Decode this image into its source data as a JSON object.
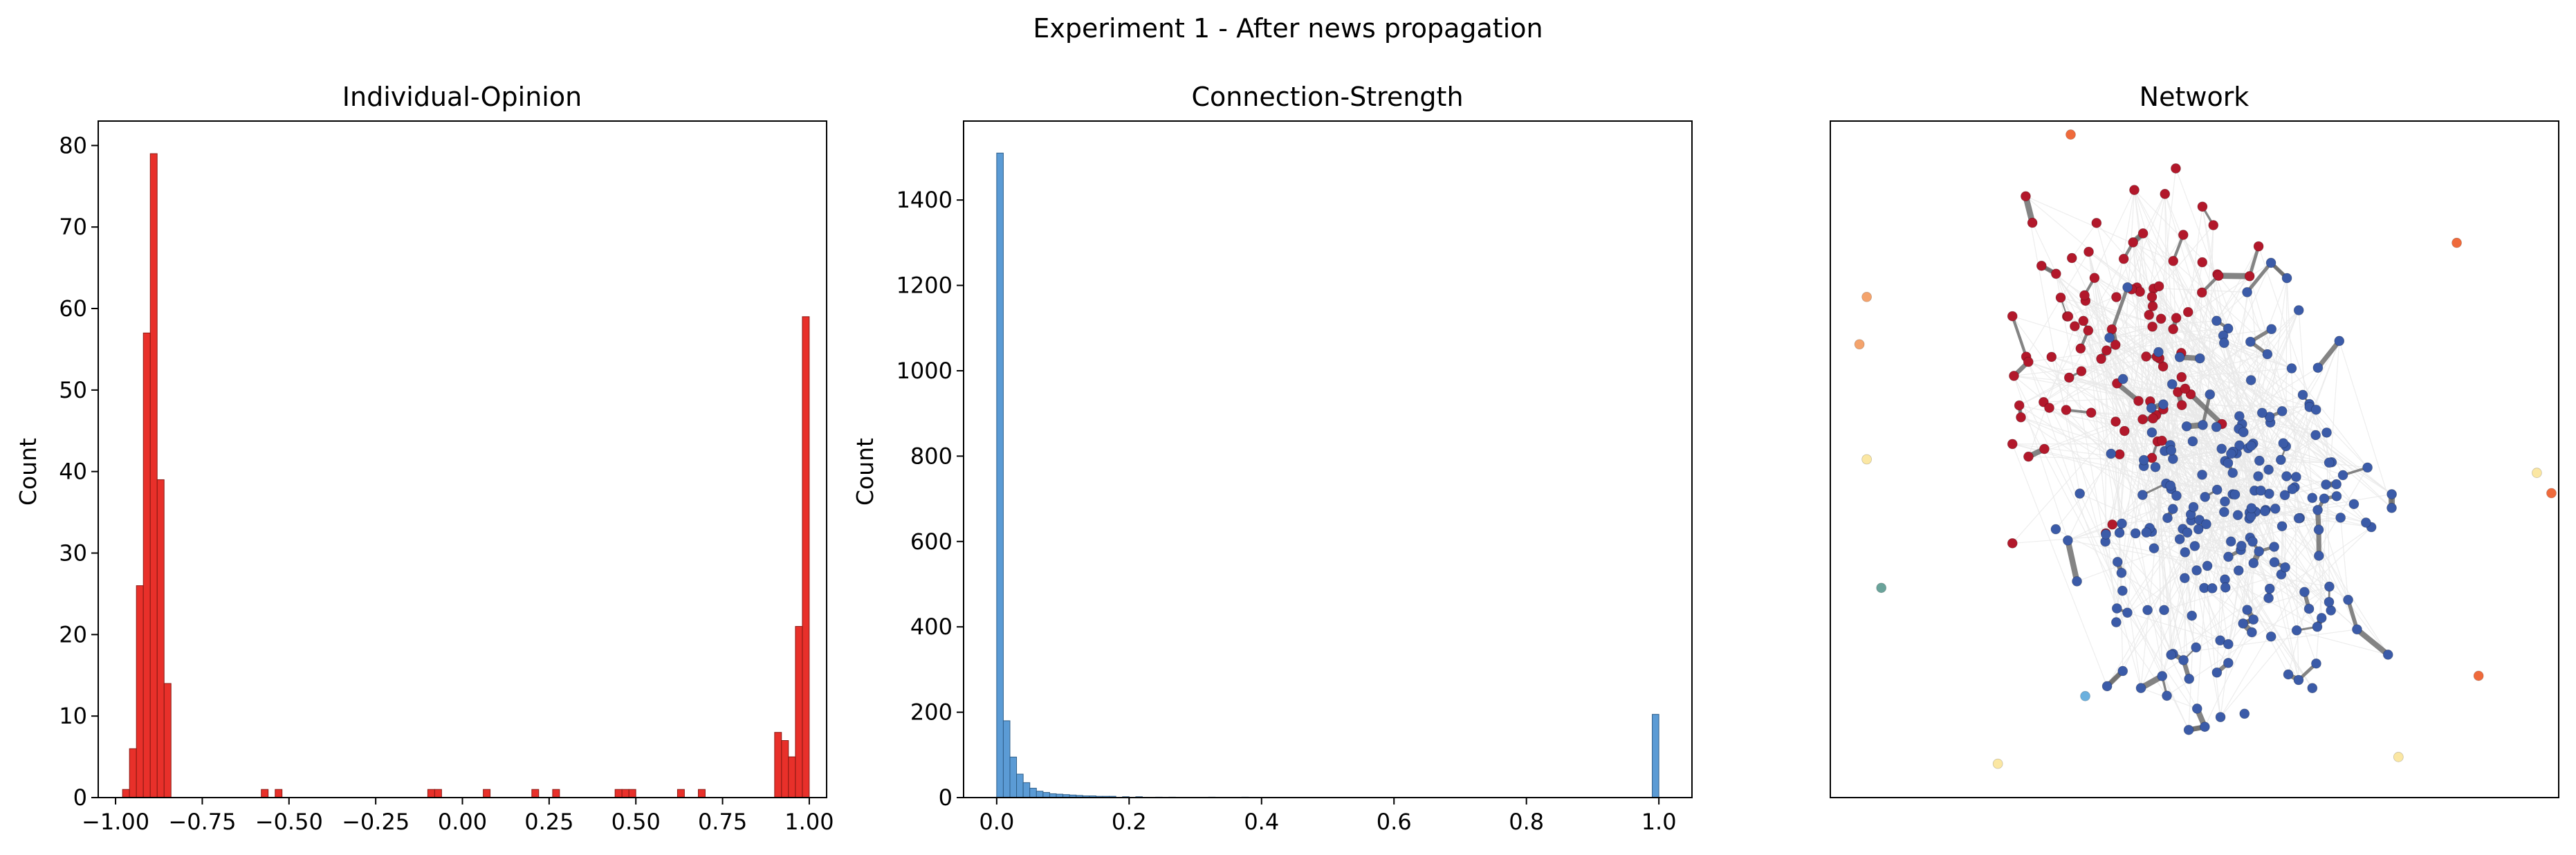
{
  "figure": {
    "suptitle": "Experiment 1 - After news propagation"
  },
  "chart_data": [
    {
      "type": "bar",
      "subtype": "histogram",
      "title": "Individual-Opinion",
      "xlabel": "",
      "ylabel": "Count",
      "xlim": [
        -1.05,
        1.05
      ],
      "ylim": [
        0,
        83
      ],
      "xticks": [
        -1.0,
        -0.75,
        -0.5,
        -0.25,
        0.0,
        0.25,
        0.5,
        0.75,
        1.0
      ],
      "xtick_labels": [
        "−1.00",
        "−0.75",
        "−0.50",
        "−0.25",
        "0.00",
        "0.25",
        "0.50",
        "0.75",
        "1.00"
      ],
      "yticks": [
        0,
        10,
        20,
        30,
        40,
        50,
        60,
        70,
        80
      ],
      "ytick_labels": [
        "0",
        "10",
        "20",
        "30",
        "40",
        "50",
        "60",
        "70",
        "80"
      ],
      "bar_color": "#e8302a",
      "edge_color": "#8b1a14",
      "bin_width": 0.0198,
      "bins": [
        {
          "x": -0.97,
          "count": 1
        },
        {
          "x": -0.95,
          "count": 6
        },
        {
          "x": -0.93,
          "count": 26
        },
        {
          "x": -0.91,
          "count": 57
        },
        {
          "x": -0.89,
          "count": 79
        },
        {
          "x": -0.87,
          "count": 39
        },
        {
          "x": -0.85,
          "count": 14
        },
        {
          "x": -0.57,
          "count": 1
        },
        {
          "x": -0.53,
          "count": 1
        },
        {
          "x": -0.09,
          "count": 1
        },
        {
          "x": -0.07,
          "count": 1
        },
        {
          "x": 0.07,
          "count": 1
        },
        {
          "x": 0.21,
          "count": 1
        },
        {
          "x": 0.27,
          "count": 1
        },
        {
          "x": 0.45,
          "count": 1
        },
        {
          "x": 0.47,
          "count": 1
        },
        {
          "x": 0.49,
          "count": 1
        },
        {
          "x": 0.63,
          "count": 1
        },
        {
          "x": 0.69,
          "count": 1
        },
        {
          "x": 0.91,
          "count": 8
        },
        {
          "x": 0.93,
          "count": 7
        },
        {
          "x": 0.95,
          "count": 5
        },
        {
          "x": 0.97,
          "count": 21
        },
        {
          "x": 0.99,
          "count": 59
        }
      ]
    },
    {
      "type": "bar",
      "subtype": "histogram",
      "title": "Connection-Strength",
      "xlabel": "",
      "ylabel": "Count",
      "xlim": [
        -0.05,
        1.05
      ],
      "ylim": [
        0,
        1585
      ],
      "xticks": [
        0.0,
        0.2,
        0.4,
        0.6,
        0.8,
        1.0
      ],
      "xtick_labels": [
        "0.0",
        "0.2",
        "0.4",
        "0.6",
        "0.8",
        "1.0"
      ],
      "yticks": [
        0,
        200,
        400,
        600,
        800,
        1000,
        1200,
        1400
      ],
      "ytick_labels": [
        "0",
        "200",
        "400",
        "600",
        "800",
        "1000",
        "1200",
        "1400"
      ],
      "bar_color": "#5b9bd5",
      "edge_color": "#2f5f8a",
      "bin_width": 0.01,
      "bins": [
        {
          "x": 0.005,
          "count": 1510
        },
        {
          "x": 0.015,
          "count": 180
        },
        {
          "x": 0.025,
          "count": 95
        },
        {
          "x": 0.035,
          "count": 55
        },
        {
          "x": 0.045,
          "count": 35
        },
        {
          "x": 0.055,
          "count": 22
        },
        {
          "x": 0.065,
          "count": 15
        },
        {
          "x": 0.075,
          "count": 12
        },
        {
          "x": 0.085,
          "count": 9
        },
        {
          "x": 0.095,
          "count": 8
        },
        {
          "x": 0.105,
          "count": 7
        },
        {
          "x": 0.115,
          "count": 6
        },
        {
          "x": 0.125,
          "count": 5
        },
        {
          "x": 0.135,
          "count": 4
        },
        {
          "x": 0.145,
          "count": 4
        },
        {
          "x": 0.155,
          "count": 3
        },
        {
          "x": 0.165,
          "count": 3
        },
        {
          "x": 0.175,
          "count": 3
        },
        {
          "x": 0.195,
          "count": 2
        },
        {
          "x": 0.215,
          "count": 2
        },
        {
          "x": 0.245,
          "count": 1
        },
        {
          "x": 0.265,
          "count": 1
        },
        {
          "x": 0.325,
          "count": 1
        },
        {
          "x": 0.375,
          "count": 1
        },
        {
          "x": 0.995,
          "count": 195
        }
      ]
    },
    {
      "type": "scatter",
      "subtype": "network-graph",
      "title": "Network",
      "axes_visible": false,
      "colors": {
        "red": "#b2182b",
        "blue": "#3b5ba8",
        "orange": "#ef6a3b",
        "light_orange": "#f4a36c",
        "pale_yellow": "#fbe7a3",
        "teal": "#6aa39a",
        "sky": "#6bb0de",
        "edge_strong": "#6f6f6f",
        "edge_faint": "#e8e8e8"
      },
      "extent": [
        0,
        1
      ],
      "isolated_nodes": [
        {
          "x": 0.33,
          "y": 0.98,
          "color": "orange"
        },
        {
          "x": 0.86,
          "y": 0.82,
          "color": "orange"
        },
        {
          "x": 0.05,
          "y": 0.74,
          "color": "light_orange"
        },
        {
          "x": 0.04,
          "y": 0.67,
          "color": "light_orange"
        },
        {
          "x": 0.05,
          "y": 0.5,
          "color": "pale_yellow"
        },
        {
          "x": 0.97,
          "y": 0.48,
          "color": "pale_yellow"
        },
        {
          "x": 0.99,
          "y": 0.45,
          "color": "orange"
        },
        {
          "x": 0.07,
          "y": 0.31,
          "color": "teal"
        },
        {
          "x": 0.35,
          "y": 0.15,
          "color": "sky"
        },
        {
          "x": 0.89,
          "y": 0.18,
          "color": "orange"
        },
        {
          "x": 0.23,
          "y": 0.05,
          "color": "pale_yellow"
        },
        {
          "x": 0.78,
          "y": 0.06,
          "color": "pale_yellow"
        }
      ],
      "red_cluster": {
        "cx": 0.39,
        "cy": 0.67,
        "rx": 0.12,
        "ry": 0.17,
        "count": 95
      },
      "blue_cluster": {
        "cx": 0.55,
        "cy": 0.41,
        "rx": 0.14,
        "ry": 0.22,
        "count": 215
      }
    }
  ]
}
